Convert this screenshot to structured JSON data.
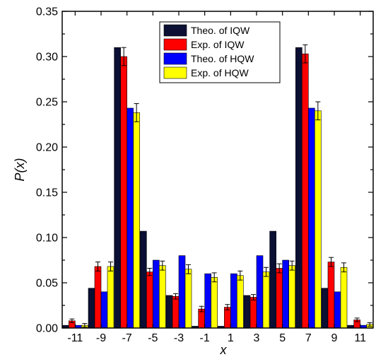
{
  "chart_data": {
    "type": "bar",
    "xlabel": "x",
    "ylabel": "P(x)",
    "ylim": [
      0,
      0.35
    ],
    "yticks": [
      "0.00",
      "0.05",
      "0.10",
      "0.15",
      "0.20",
      "0.25",
      "0.30",
      "0.35"
    ],
    "categories": [
      "-11",
      "-9",
      "-7",
      "-5",
      "-3",
      "-1",
      "1",
      "3",
      "5",
      "7",
      "9",
      "11"
    ],
    "legend_position": "top-right",
    "grid": false,
    "series": [
      {
        "name": "Theo. of IQW",
        "color": "#0a0f33",
        "values": [
          0.003,
          0.044,
          0.31,
          0.107,
          0.036,
          0.002,
          0.002,
          0.036,
          0.107,
          0.31,
          0.044,
          0.003
        ],
        "errors": [
          0,
          0,
          0,
          0,
          0,
          0,
          0,
          0,
          0,
          0,
          0,
          0
        ]
      },
      {
        "name": "Exp. of IQW",
        "color": "#ff0000",
        "values": [
          0.008,
          0.068,
          0.3,
          0.062,
          0.035,
          0.021,
          0.023,
          0.034,
          0.066,
          0.303,
          0.073,
          0.009
        ],
        "errors": [
          0.002,
          0.005,
          0.01,
          0.004,
          0.003,
          0.003,
          0.003,
          0.003,
          0.005,
          0.01,
          0.005,
          0.002
        ]
      },
      {
        "name": "Theo. of HQW",
        "color": "#0000ff",
        "values": [
          0.003,
          0.04,
          0.243,
          0.075,
          0.08,
          0.06,
          0.06,
          0.08,
          0.075,
          0.243,
          0.04,
          0.003
        ],
        "errors": [
          0,
          0,
          0,
          0,
          0,
          0,
          0,
          0,
          0,
          0,
          0,
          0
        ]
      },
      {
        "name": "Exp. of HQW",
        "color": "#ffff00",
        "values": [
          0.003,
          0.068,
          0.238,
          0.069,
          0.065,
          0.056,
          0.058,
          0.062,
          0.069,
          0.24,
          0.067,
          0.004
        ],
        "errors": [
          0.002,
          0.005,
          0.01,
          0.005,
          0.005,
          0.005,
          0.005,
          0.005,
          0.005,
          0.01,
          0.005,
          0.002
        ]
      }
    ]
  }
}
